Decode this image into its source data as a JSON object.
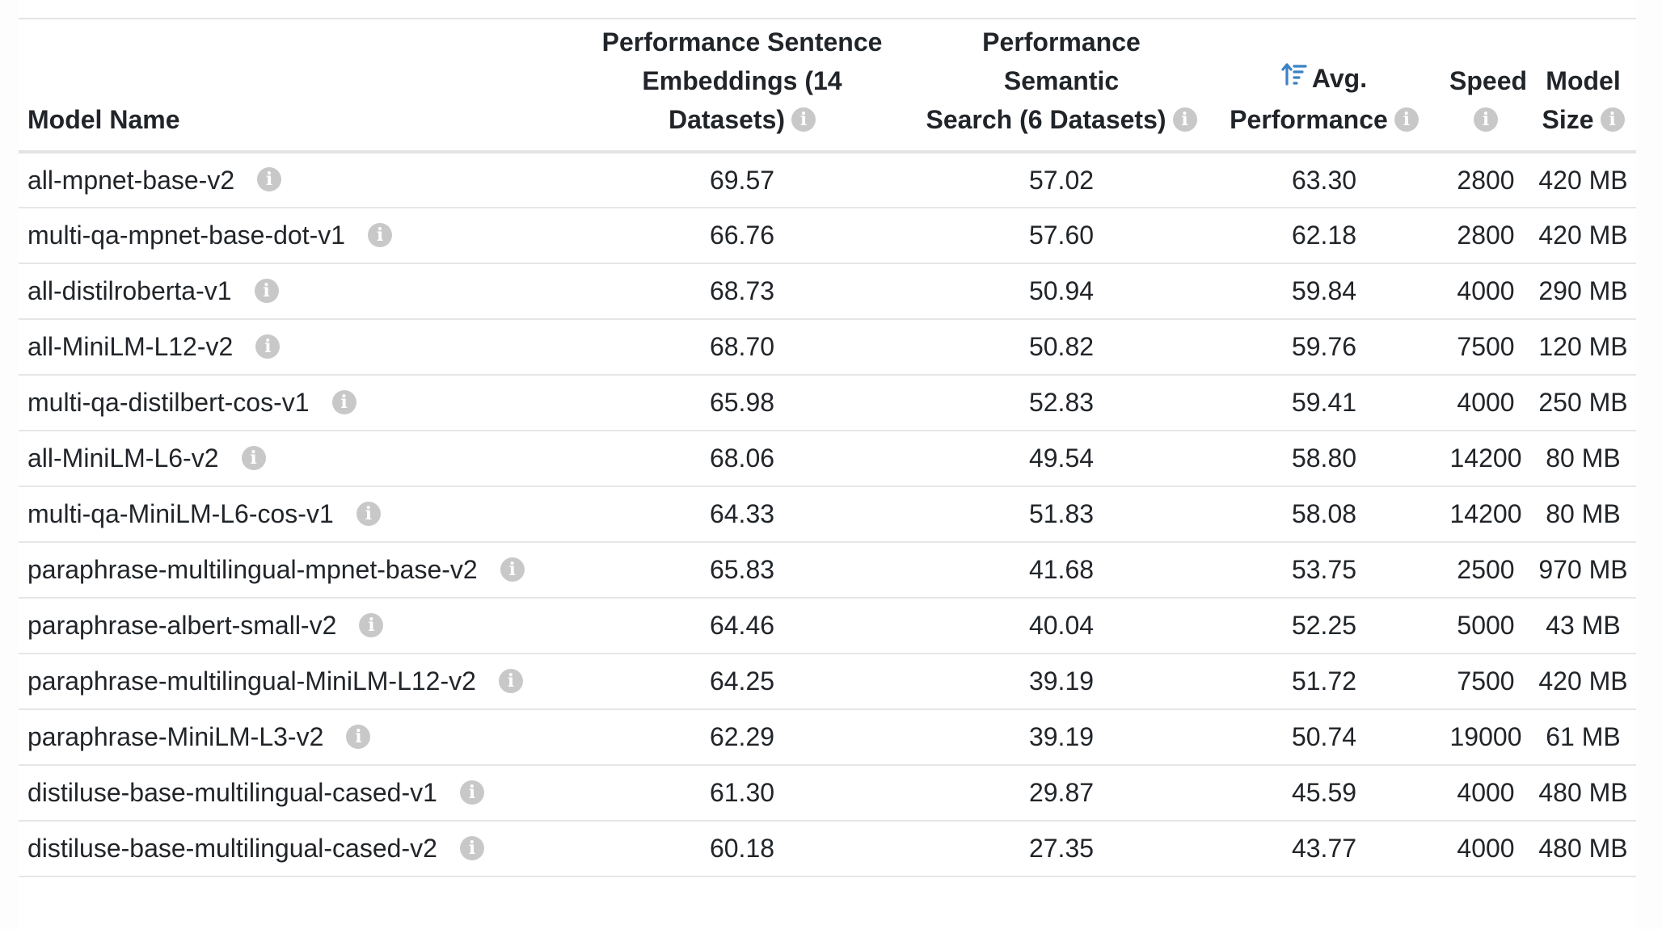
{
  "table": {
    "headers": {
      "model_name": "Model Name",
      "perf_sentence_line1": "Performance Sentence",
      "perf_sentence_line2": "Embeddings (14",
      "perf_sentence_line3": "Datasets)",
      "perf_semantic_line1": "Performance Semantic",
      "perf_semantic_line2": "Search (6 Datasets)",
      "avg_line1": "Avg.",
      "avg_line2": "Performance",
      "speed": "Speed",
      "size_line1": "Model",
      "size_line2": "Size"
    },
    "sort": {
      "column": "Avg. Performance",
      "direction": "descending",
      "icon": "sort-descending-icon",
      "color": "#3b82c4"
    },
    "info_icon": {
      "name": "info-icon",
      "glyph": "i",
      "color": "#c8c8c8"
    },
    "rows": [
      {
        "name": "all-mpnet-base-v2",
        "emb": "69.57",
        "sem": "57.02",
        "avg": "63.30",
        "speed": "2800",
        "size": "420 MB"
      },
      {
        "name": "multi-qa-mpnet-base-dot-v1",
        "emb": "66.76",
        "sem": "57.60",
        "avg": "62.18",
        "speed": "2800",
        "size": "420 MB"
      },
      {
        "name": "all-distilroberta-v1",
        "emb": "68.73",
        "sem": "50.94",
        "avg": "59.84",
        "speed": "4000",
        "size": "290 MB"
      },
      {
        "name": "all-MiniLM-L12-v2",
        "emb": "68.70",
        "sem": "50.82",
        "avg": "59.76",
        "speed": "7500",
        "size": "120 MB"
      },
      {
        "name": "multi-qa-distilbert-cos-v1",
        "emb": "65.98",
        "sem": "52.83",
        "avg": "59.41",
        "speed": "4000",
        "size": "250 MB"
      },
      {
        "name": "all-MiniLM-L6-v2",
        "emb": "68.06",
        "sem": "49.54",
        "avg": "58.80",
        "speed": "14200",
        "size": "80 MB"
      },
      {
        "name": "multi-qa-MiniLM-L6-cos-v1",
        "emb": "64.33",
        "sem": "51.83",
        "avg": "58.08",
        "speed": "14200",
        "size": "80 MB"
      },
      {
        "name": "paraphrase-multilingual-mpnet-base-v2",
        "emb": "65.83",
        "sem": "41.68",
        "avg": "53.75",
        "speed": "2500",
        "size": "970 MB"
      },
      {
        "name": "paraphrase-albert-small-v2",
        "emb": "64.46",
        "sem": "40.04",
        "avg": "52.25",
        "speed": "5000",
        "size": "43 MB"
      },
      {
        "name": "paraphrase-multilingual-MiniLM-L12-v2",
        "emb": "64.25",
        "sem": "39.19",
        "avg": "51.72",
        "speed": "7500",
        "size": "420 MB"
      },
      {
        "name": "paraphrase-MiniLM-L3-v2",
        "emb": "62.29",
        "sem": "39.19",
        "avg": "50.74",
        "speed": "19000",
        "size": "61 MB"
      },
      {
        "name": "distiluse-base-multilingual-cased-v1",
        "emb": "61.30",
        "sem": "29.87",
        "avg": "45.59",
        "speed": "4000",
        "size": "480 MB"
      },
      {
        "name": "distiluse-base-multilingual-cased-v2",
        "emb": "60.18",
        "sem": "27.35",
        "avg": "43.77",
        "speed": "4000",
        "size": "480 MB"
      }
    ]
  }
}
